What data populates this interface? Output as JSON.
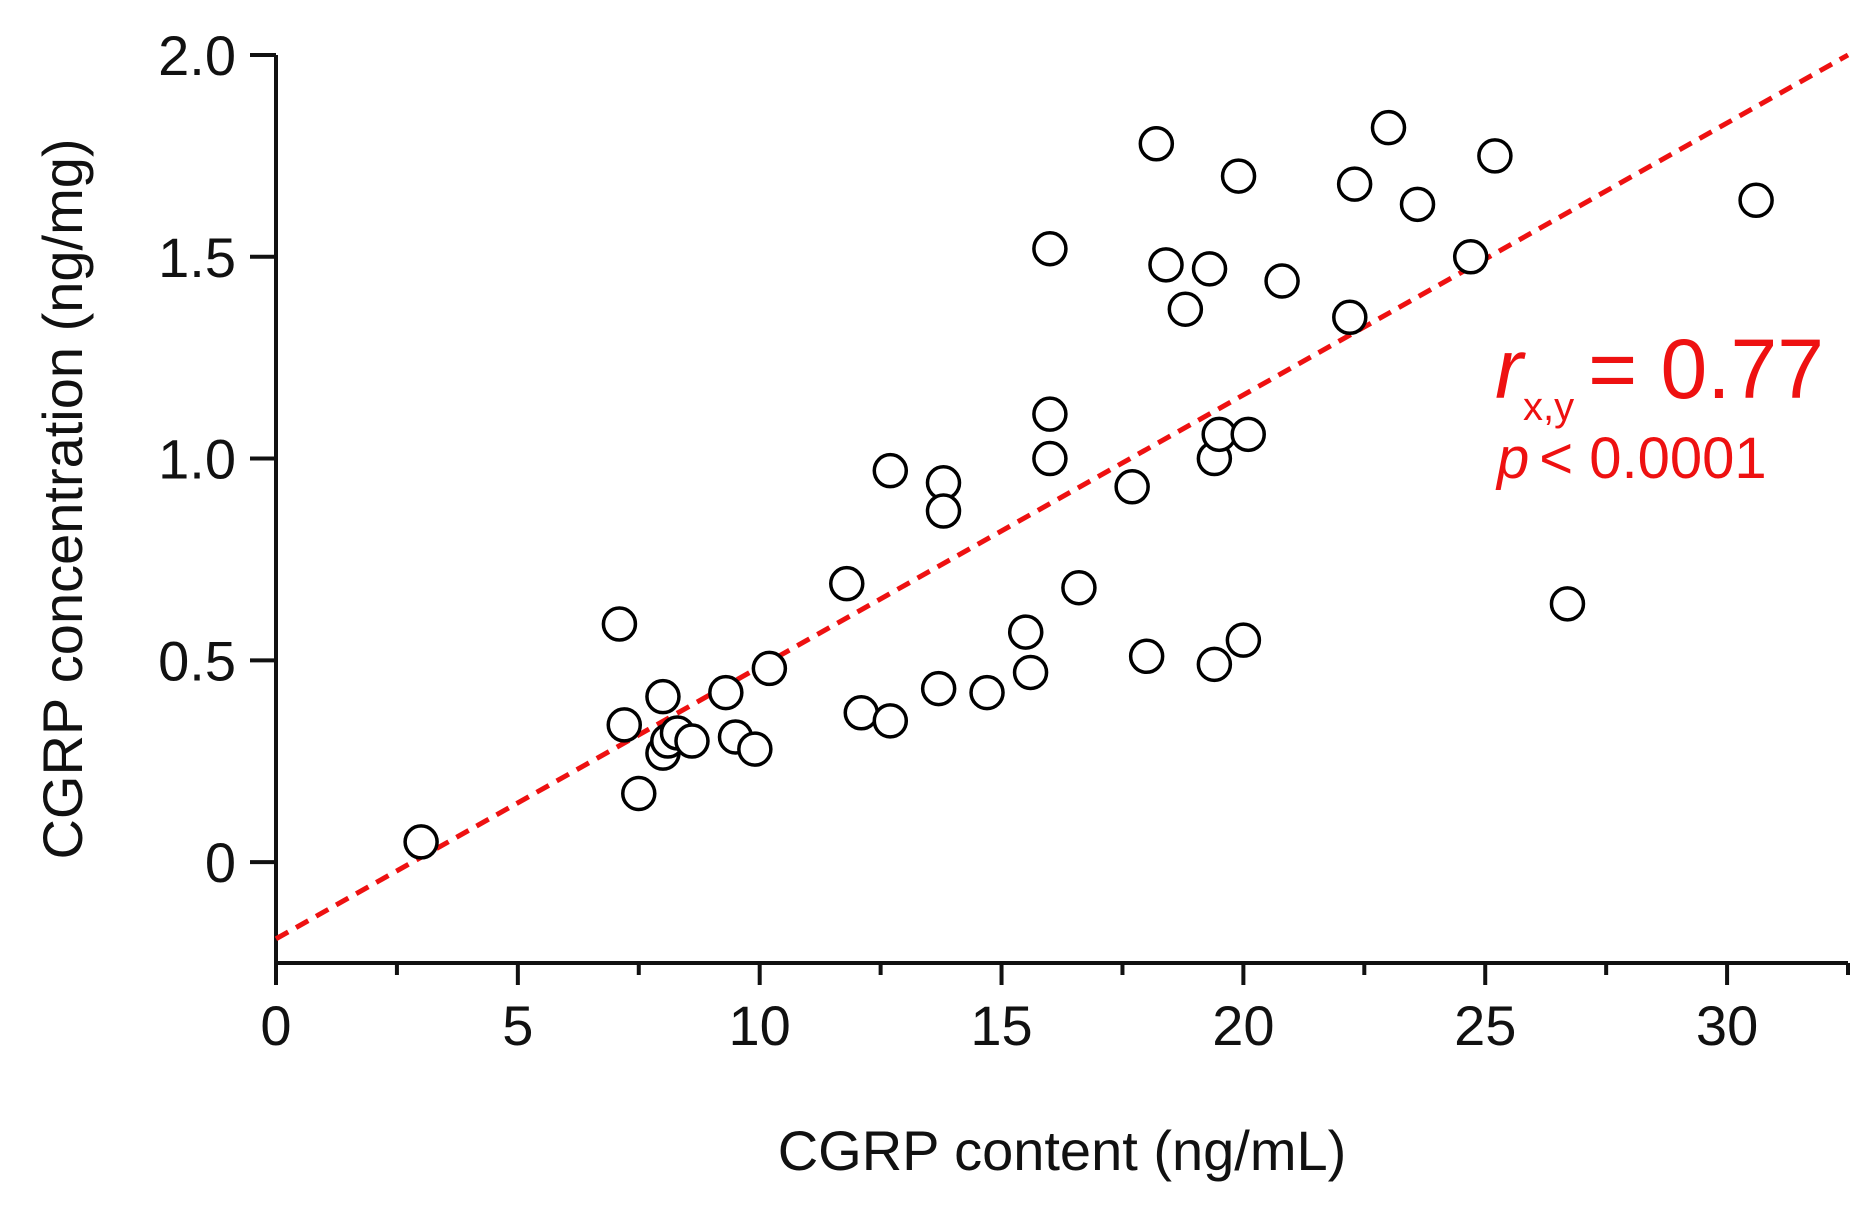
{
  "chart_data": {
    "type": "scatter",
    "title": "",
    "xlabel": "CGRP content (ng/mL)",
    "ylabel": "CGRP concentration (ng/mg)",
    "xlim": [
      0,
      32.5
    ],
    "ylim": [
      -0.25,
      2.0
    ],
    "xticks": [
      0,
      5,
      10,
      15,
      20,
      25,
      30
    ],
    "xtick_labels": [
      "0",
      "5",
      "10",
      "15",
      "20",
      "25",
      "30"
    ],
    "xminor": [
      2.5,
      7.5,
      12.5,
      17.5,
      22.5,
      27.5,
      32.5
    ],
    "yticks": [
      0,
      0.5,
      1.0,
      1.5,
      2.0
    ],
    "ytick_labels": [
      "0",
      "0.5",
      "1.0",
      "1.5",
      "2.0"
    ],
    "grid": false,
    "series": [
      {
        "name": "samples",
        "marker": "open-circle",
        "color": "#000000",
        "points": [
          [
            3.0,
            0.05
          ],
          [
            7.1,
            0.59
          ],
          [
            7.2,
            0.34
          ],
          [
            7.5,
            0.17
          ],
          [
            8.0,
            0.41
          ],
          [
            8.0,
            0.27
          ],
          [
            8.1,
            0.3
          ],
          [
            8.3,
            0.32
          ],
          [
            8.6,
            0.3
          ],
          [
            9.3,
            0.42
          ],
          [
            9.5,
            0.31
          ],
          [
            9.9,
            0.28
          ],
          [
            10.2,
            0.48
          ],
          [
            11.8,
            0.69
          ],
          [
            12.1,
            0.37
          ],
          [
            12.7,
            0.35
          ],
          [
            12.7,
            0.97
          ],
          [
            13.7,
            0.43
          ],
          [
            13.8,
            0.94
          ],
          [
            13.8,
            0.87
          ],
          [
            14.7,
            0.42
          ],
          [
            15.5,
            0.57
          ],
          [
            15.6,
            0.47
          ],
          [
            16.0,
            1.52
          ],
          [
            16.0,
            1.11
          ],
          [
            16.0,
            1.0
          ],
          [
            16.6,
            0.68
          ],
          [
            17.7,
            0.93
          ],
          [
            18.0,
            0.51
          ],
          [
            18.2,
            1.78
          ],
          [
            18.4,
            1.48
          ],
          [
            18.8,
            1.37
          ],
          [
            19.3,
            1.47
          ],
          [
            19.4,
            0.49
          ],
          [
            19.4,
            1.0
          ],
          [
            19.5,
            1.06
          ],
          [
            19.9,
            1.7
          ],
          [
            20.0,
            0.55
          ],
          [
            20.1,
            1.06
          ],
          [
            20.8,
            1.44
          ],
          [
            22.2,
            1.35
          ],
          [
            22.3,
            1.68
          ],
          [
            23.0,
            1.82
          ],
          [
            23.6,
            1.63
          ],
          [
            24.7,
            1.5
          ],
          [
            25.2,
            1.75
          ],
          [
            26.7,
            0.64
          ],
          [
            30.6,
            1.64
          ]
        ]
      }
    ],
    "fit_line": {
      "style": "dashed",
      "color": "#ee1111",
      "x": [
        0,
        32.5
      ],
      "y": [
        -0.19,
        2.0
      ]
    },
    "annotations": {
      "r_symbol": "r",
      "r_subscript": "x,y",
      "r_value": "= 0.77",
      "p_symbol": "p",
      "p_value": "< 0.0001",
      "color": "#ee1111",
      "placement": "right"
    }
  }
}
